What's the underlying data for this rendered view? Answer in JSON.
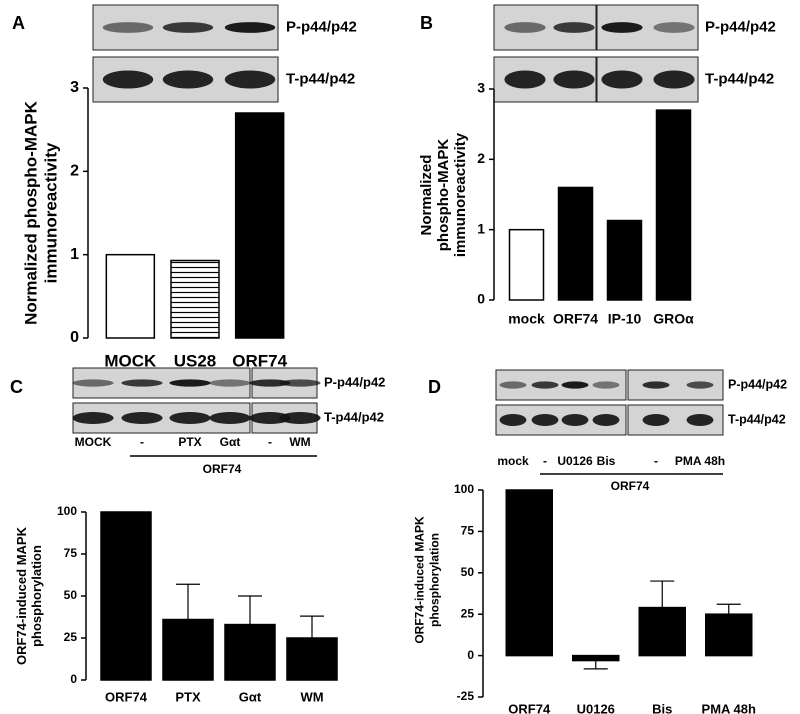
{
  "chart_data": [
    {
      "type": "bar",
      "panel": "A",
      "blot_labels": [
        "P-p44/p42",
        "T-p44/p42"
      ],
      "ylabel": [
        "Normalized phospho-MAPK",
        "immunoreactivity"
      ],
      "categories": [
        "MOCK",
        "US28",
        "ORF74"
      ],
      "values": [
        1.0,
        0.93,
        2.7
      ],
      "bar_colors": [
        "#ffffff",
        "#ffffff",
        "#000000"
      ],
      "hatch": [
        "none",
        "horizontal",
        "none"
      ],
      "ylim": [
        0,
        3
      ],
      "yticks": [
        0,
        1,
        2,
        3
      ]
    },
    {
      "type": "bar",
      "panel": "B",
      "blot_labels": [
        "P-p44/p42",
        "T-p44/p42"
      ],
      "ylabel": [
        "Normalized",
        "phospho-MAPK",
        "immunoreactivity"
      ],
      "categories": [
        "mock",
        "ORF74",
        "IP-10",
        "GROα"
      ],
      "values": [
        1.0,
        1.6,
        1.13,
        2.7
      ],
      "bar_colors": [
        "#ffffff",
        "#000000",
        "#000000",
        "#000000"
      ],
      "hatch": [
        "none",
        "none",
        "none",
        "none"
      ],
      "ylim": [
        0,
        3
      ],
      "yticks": [
        0,
        1,
        2,
        3
      ]
    },
    {
      "type": "bar",
      "panel": "C",
      "blot_labels": [
        "P-p44/p42",
        "T-p44/p42"
      ],
      "lane_labels": [
        "MOCK",
        "-",
        "PTX",
        "Gαt",
        "-",
        "WM"
      ],
      "group_label": "ORF74",
      "ylabel": [
        "ORF74-induced MAPK",
        "phosphorylation"
      ],
      "categories": [
        "ORF74",
        "PTX",
        "Gαt",
        "WM"
      ],
      "values": [
        100,
        36,
        33,
        25
      ],
      "errors": [
        null,
        21,
        17,
        13
      ],
      "bar_colors": [
        "#000000",
        "#000000",
        "#000000",
        "#000000"
      ],
      "hatch": [
        "none",
        "none",
        "none",
        "none"
      ],
      "ylim": [
        0,
        100
      ],
      "yticks": [
        0,
        25,
        50,
        75,
        100
      ]
    },
    {
      "type": "bar",
      "panel": "D",
      "blot_labels": [
        "P-p44/p42",
        "T-p44/p42"
      ],
      "lane_labels": [
        "mock",
        "-",
        "U0126",
        "Bis",
        "-",
        "PMA 48h"
      ],
      "group_label": "ORF74",
      "ylabel": [
        "ORF74-induced MAPK",
        "phosphorylation"
      ],
      "categories": [
        "ORF74",
        "U0126",
        "Bis",
        "PMA 48h"
      ],
      "values": [
        100,
        -3,
        29,
        25
      ],
      "errors": [
        null,
        5,
        16,
        6
      ],
      "bar_colors": [
        "#000000",
        "#000000",
        "#000000",
        "#000000"
      ],
      "hatch": [
        "none",
        "none",
        "none",
        "none"
      ],
      "ylim": [
        -25,
        100
      ],
      "yticks": [
        -25,
        0,
        25,
        50,
        75,
        100
      ]
    }
  ]
}
